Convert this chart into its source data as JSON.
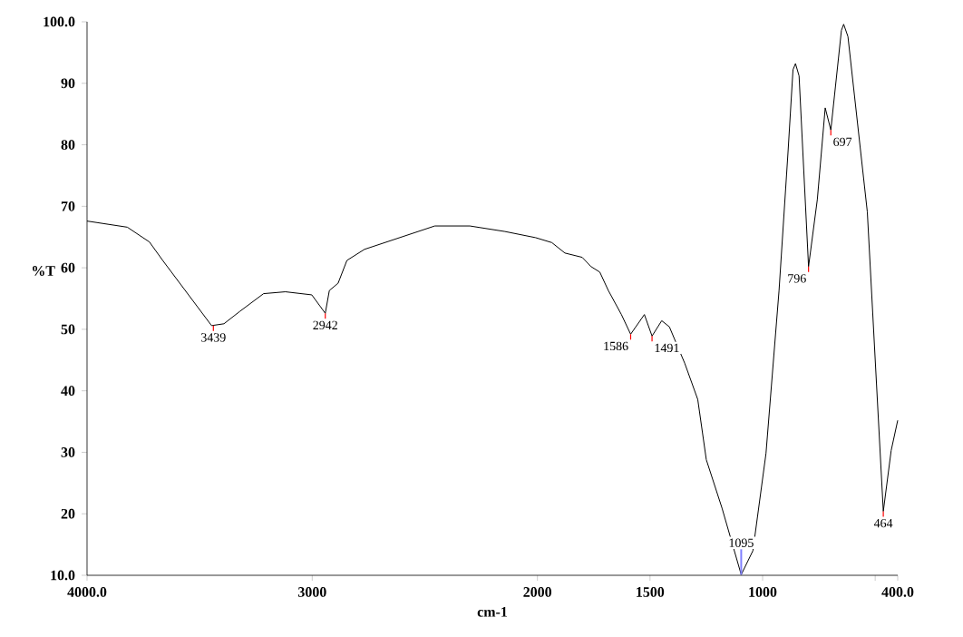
{
  "chart_data": {
    "type": "line",
    "xlabel": "cm-1",
    "ylabel": "%T",
    "x": [
      4000,
      3821,
      3723,
      3664,
      3447,
      3392,
      3322,
      3216,
      3119,
      3002,
      2942,
      2924,
      2885,
      2846,
      2768,
      2612,
      2456,
      2300,
      2144,
      2008,
      1936,
      1878,
      1801,
      1762,
      1723,
      1685,
      1627,
      1586,
      1525,
      1491,
      1448,
      1414,
      1375,
      1346,
      1288,
      1250,
      1180,
      1095,
      1043,
      985,
      927,
      887,
      865,
      854,
      838,
      796,
      757,
      722,
      697,
      650,
      640,
      621,
      535,
      464,
      429,
      400
    ],
    "series": [
      {
        "color": "#000000",
        "values": [
          67.6,
          66.6,
          64.2,
          61.2,
          50.6,
          50.9,
          52.9,
          55.8,
          56.1,
          55.6,
          52.6,
          56.3,
          57.5,
          61.2,
          63.0,
          64.9,
          66.8,
          66.8,
          65.9,
          64.9,
          64.1,
          62.4,
          61.7,
          60.2,
          59.3,
          56.3,
          52.4,
          49.2,
          52.4,
          48.9,
          51.4,
          50.4,
          47.0,
          44.5,
          38.6,
          28.8,
          20.9,
          10.1,
          14.0,
          29.8,
          56.3,
          78.9,
          92.2,
          93.2,
          91.2,
          60.2,
          71.1,
          86.0,
          82.4,
          98.6,
          99.6,
          97.6,
          69.1,
          20.4,
          30.3,
          35.2
        ]
      }
    ],
    "xlim": [
      4000,
      400
    ],
    "ylim": [
      10,
      100
    ],
    "xticks": [
      {
        "value": 4000,
        "label": "4000.0"
      },
      3000,
      2000,
      1500,
      1000,
      {
        "value": 500,
        "label": null
      },
      {
        "value": 400,
        "label": "400.0"
      }
    ],
    "yticks": [
      {
        "value": 10,
        "label": "10.0"
      },
      20,
      30,
      40,
      50,
      60,
      70,
      80,
      90,
      {
        "value": 100,
        "label": "100.0"
      }
    ],
    "grid": false,
    "marker": "none",
    "line_style": "solid",
    "annotations": [
      {
        "text": "3439",
        "x": 3439,
        "y": 50.6
      },
      {
        "text": "2942",
        "x": 2942,
        "y": 52.6
      },
      {
        "text": "1586",
        "x": 1586,
        "y": 49.2
      },
      {
        "text": "1491",
        "x": 1491,
        "y": 48.9
      },
      {
        "text": "1095",
        "x": 1095,
        "y": 10.1
      },
      {
        "text": "796",
        "x": 796,
        "y": 60.2
      },
      {
        "text": "697",
        "x": 697,
        "y": 82.4
      },
      {
        "text": "464",
        "x": 464,
        "y": 20.4
      }
    ]
  }
}
